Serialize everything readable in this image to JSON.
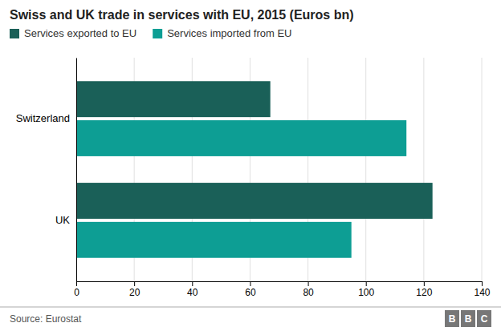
{
  "chart_data": {
    "type": "bar",
    "orientation": "horizontal",
    "title": "Swiss and UK trade in services with EU, 2015 (Euros bn)",
    "categories": [
      "Switzerland",
      "UK"
    ],
    "series": [
      {
        "name": "Services exported to EU",
        "color": "#1a6058",
        "values": [
          67,
          123
        ]
      },
      {
        "name": "Services imported from EU",
        "color": "#0d9e94",
        "values": [
          114,
          95
        ]
      }
    ],
    "xlim": [
      0,
      140
    ],
    "xticks": [
      0,
      20,
      40,
      60,
      80,
      100,
      120,
      140
    ],
    "grid": true,
    "legend": "top-left",
    "source": "Source: Eurostat",
    "logo": [
      "B",
      "B",
      "C"
    ]
  }
}
